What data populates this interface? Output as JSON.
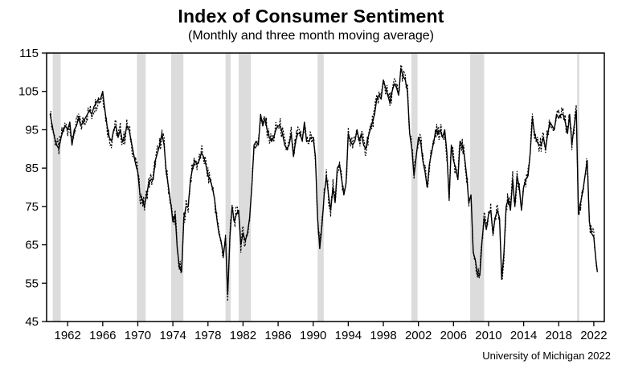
{
  "footer": {
    "source": "University of Michigan 2022"
  },
  "chart_data": {
    "type": "line",
    "title": "Index of Consumer Sentiment",
    "subtitle": "(Monthly and three month moving average)",
    "xlabel": "",
    "ylabel": "",
    "xlim": [
      1959.6,
      2023.2
    ],
    "ylim": [
      45,
      115
    ],
    "yticks": [
      45,
      55,
      65,
      75,
      85,
      95,
      105,
      115
    ],
    "xticks": [
      1962,
      1966,
      1970,
      1974,
      1978,
      1982,
      1986,
      1990,
      1994,
      1998,
      2002,
      2006,
      2010,
      2014,
      2018,
      2022
    ],
    "grid": false,
    "legend": "none",
    "line_color": "#000000",
    "recession_band_color": "#dcdcdc",
    "recession_bands": [
      [
        1960.3,
        1961.2
      ],
      [
        1969.9,
        1970.9
      ],
      [
        1973.8,
        1975.2
      ],
      [
        1980.0,
        1980.6
      ],
      [
        1981.5,
        1982.9
      ],
      [
        1990.5,
        1991.2
      ],
      [
        2001.2,
        2001.9
      ],
      [
        2007.9,
        2009.5
      ],
      [
        2020.1,
        2020.35
      ]
    ],
    "series": [
      {
        "name": "Monthly",
        "style": "dotted"
      },
      {
        "name": "Three month moving average",
        "style": "solid"
      }
    ],
    "points": [
      [
        1960.0,
        99
      ],
      [
        1960.25,
        96
      ],
      [
        1960.5,
        93
      ],
      [
        1960.75,
        91
      ],
      [
        1961.0,
        90
      ],
      [
        1961.25,
        93
      ],
      [
        1961.5,
        95
      ],
      [
        1961.75,
        96
      ],
      [
        1962.0,
        95
      ],
      [
        1962.25,
        97
      ],
      [
        1962.5,
        91
      ],
      [
        1962.75,
        95
      ],
      [
        1963.0,
        96
      ],
      [
        1963.25,
        98
      ],
      [
        1963.5,
        96
      ],
      [
        1963.75,
        97
      ],
      [
        1964.0,
        98
      ],
      [
        1964.25,
        99
      ],
      [
        1964.5,
        100
      ],
      [
        1964.75,
        99
      ],
      [
        1965.0,
        101
      ],
      [
        1965.25,
        102
      ],
      [
        1965.5,
        103
      ],
      [
        1965.75,
        103
      ],
      [
        1966.0,
        105
      ],
      [
        1966.25,
        100
      ],
      [
        1966.5,
        96
      ],
      [
        1966.75,
        93
      ],
      [
        1967.0,
        92
      ],
      [
        1967.25,
        95
      ],
      [
        1967.5,
        96
      ],
      [
        1967.75,
        93
      ],
      [
        1968.0,
        95
      ],
      [
        1968.25,
        92
      ],
      [
        1968.5,
        93
      ],
      [
        1968.75,
        96
      ],
      [
        1969.0,
        95
      ],
      [
        1969.25,
        92
      ],
      [
        1969.5,
        89
      ],
      [
        1969.75,
        86
      ],
      [
        1970.0,
        84
      ],
      [
        1970.25,
        78
      ],
      [
        1970.5,
        77
      ],
      [
        1970.75,
        75
      ],
      [
        1971.0,
        78
      ],
      [
        1971.25,
        81
      ],
      [
        1971.5,
        82
      ],
      [
        1971.75,
        82
      ],
      [
        1972.0,
        87
      ],
      [
        1972.25,
        89
      ],
      [
        1972.5,
        91
      ],
      [
        1972.75,
        94
      ],
      [
        1973.0,
        91
      ],
      [
        1973.25,
        84
      ],
      [
        1973.5,
        80
      ],
      [
        1973.75,
        76
      ],
      [
        1974.0,
        71
      ],
      [
        1974.25,
        73
      ],
      [
        1974.5,
        64
      ],
      [
        1974.75,
        59
      ],
      [
        1975.0,
        58
      ],
      [
        1975.25,
        72
      ],
      [
        1975.5,
        75
      ],
      [
        1975.75,
        75
      ],
      [
        1976.0,
        82
      ],
      [
        1976.25,
        85
      ],
      [
        1976.5,
        87
      ],
      [
        1976.75,
        86
      ],
      [
        1977.0,
        87
      ],
      [
        1977.25,
        89
      ],
      [
        1977.5,
        88
      ],
      [
        1977.75,
        86
      ],
      [
        1978.0,
        83
      ],
      [
        1978.25,
        82
      ],
      [
        1978.5,
        80
      ],
      [
        1978.75,
        77
      ],
      [
        1979.0,
        72
      ],
      [
        1979.25,
        68
      ],
      [
        1979.5,
        66
      ],
      [
        1979.75,
        62
      ],
      [
        1980.0,
        67
      ],
      [
        1980.25,
        52
      ],
      [
        1980.5,
        67
      ],
      [
        1980.75,
        75
      ],
      [
        1981.0,
        71
      ],
      [
        1981.25,
        73
      ],
      [
        1981.5,
        74
      ],
      [
        1981.75,
        65
      ],
      [
        1982.0,
        68
      ],
      [
        1982.25,
        66
      ],
      [
        1982.5,
        68
      ],
      [
        1982.75,
        72
      ],
      [
        1983.0,
        80
      ],
      [
        1983.25,
        91
      ],
      [
        1983.5,
        92
      ],
      [
        1983.75,
        91
      ],
      [
        1984.0,
        99
      ],
      [
        1984.25,
        96
      ],
      [
        1984.5,
        98
      ],
      [
        1984.75,
        95
      ],
      [
        1985.0,
        93
      ],
      [
        1985.25,
        92
      ],
      [
        1985.5,
        93
      ],
      [
        1985.75,
        95
      ],
      [
        1986.0,
        96
      ],
      [
        1986.25,
        96
      ],
      [
        1986.5,
        94
      ],
      [
        1986.75,
        91
      ],
      [
        1987.0,
        90
      ],
      [
        1987.25,
        91
      ],
      [
        1987.5,
        94
      ],
      [
        1987.75,
        88
      ],
      [
        1988.0,
        92
      ],
      [
        1988.25,
        94
      ],
      [
        1988.5,
        94
      ],
      [
        1988.75,
        92
      ],
      [
        1989.0,
        97
      ],
      [
        1989.25,
        92
      ],
      [
        1989.5,
        92
      ],
      [
        1989.75,
        93
      ],
      [
        1990.0,
        93
      ],
      [
        1990.25,
        88
      ],
      [
        1990.5,
        72
      ],
      [
        1990.75,
        64
      ],
      [
        1991.0,
        70
      ],
      [
        1991.25,
        78
      ],
      [
        1991.5,
        83
      ],
      [
        1991.75,
        78
      ],
      [
        1992.0,
        74
      ],
      [
        1992.25,
        80
      ],
      [
        1992.5,
        76
      ],
      [
        1992.75,
        85
      ],
      [
        1993.0,
        86
      ],
      [
        1993.25,
        82
      ],
      [
        1993.5,
        78
      ],
      [
        1993.75,
        81
      ],
      [
        1994.0,
        94
      ],
      [
        1994.25,
        92
      ],
      [
        1994.5,
        91
      ],
      [
        1994.75,
        92
      ],
      [
        1995.0,
        95
      ],
      [
        1995.25,
        92
      ],
      [
        1995.5,
        94
      ],
      [
        1995.75,
        91
      ],
      [
        1996.0,
        90
      ],
      [
        1996.25,
        93
      ],
      [
        1996.5,
        95
      ],
      [
        1996.75,
        97
      ],
      [
        1997.0,
        99
      ],
      [
        1997.25,
        103
      ],
      [
        1997.5,
        104
      ],
      [
        1997.75,
        103
      ],
      [
        1998.0,
        108
      ],
      [
        1998.25,
        106
      ],
      [
        1998.5,
        104
      ],
      [
        1998.75,
        102
      ],
      [
        1999.0,
        105
      ],
      [
        1999.25,
        107
      ],
      [
        1999.5,
        106
      ],
      [
        1999.75,
        104
      ],
      [
        2000.0,
        111
      ],
      [
        2000.25,
        109
      ],
      [
        2000.5,
        108
      ],
      [
        2000.75,
        105
      ],
      [
        2001.0,
        94
      ],
      [
        2001.25,
        90
      ],
      [
        2001.5,
        83
      ],
      [
        2001.75,
        88
      ],
      [
        2002.0,
        93
      ],
      [
        2002.25,
        92
      ],
      [
        2002.5,
        87
      ],
      [
        2002.75,
        84
      ],
      [
        2003.0,
        80
      ],
      [
        2003.25,
        86
      ],
      [
        2003.5,
        89
      ],
      [
        2003.75,
        92
      ],
      [
        2004.0,
        95
      ],
      [
        2004.25,
        94
      ],
      [
        2004.5,
        95
      ],
      [
        2004.75,
        93
      ],
      [
        2005.0,
        95
      ],
      [
        2005.25,
        89
      ],
      [
        2005.5,
        77
      ],
      [
        2005.75,
        91
      ],
      [
        2006.0,
        87
      ],
      [
        2006.25,
        85
      ],
      [
        2006.5,
        82
      ],
      [
        2006.75,
        92
      ],
      [
        2007.0,
        91
      ],
      [
        2007.25,
        88
      ],
      [
        2007.5,
        83
      ],
      [
        2007.75,
        76
      ],
      [
        2008.0,
        78
      ],
      [
        2008.25,
        63
      ],
      [
        2008.5,
        61
      ],
      [
        2008.75,
        57
      ],
      [
        2009.0,
        57
      ],
      [
        2009.25,
        66
      ],
      [
        2009.5,
        72
      ],
      [
        2009.75,
        69
      ],
      [
        2010.0,
        73
      ],
      [
        2010.25,
        74
      ],
      [
        2010.5,
        68
      ],
      [
        2010.75,
        72
      ],
      [
        2011.0,
        74
      ],
      [
        2011.25,
        72
      ],
      [
        2011.5,
        56
      ],
      [
        2011.75,
        63
      ],
      [
        2012.0,
        75
      ],
      [
        2012.25,
        77
      ],
      [
        2012.5,
        74
      ],
      [
        2012.75,
        82
      ],
      [
        2013.0,
        75
      ],
      [
        2013.25,
        83
      ],
      [
        2013.5,
        80
      ],
      [
        2013.75,
        74
      ],
      [
        2014.0,
        80
      ],
      [
        2014.25,
        82
      ],
      [
        2014.5,
        83
      ],
      [
        2014.75,
        89
      ],
      [
        2015.0,
        98
      ],
      [
        2015.25,
        94
      ],
      [
        2015.5,
        92
      ],
      [
        2015.75,
        91
      ],
      [
        2016.0,
        91
      ],
      [
        2016.25,
        93
      ],
      [
        2016.5,
        90
      ],
      [
        2016.75,
        94
      ],
      [
        2017.0,
        97
      ],
      [
        2017.25,
        96
      ],
      [
        2017.5,
        95
      ],
      [
        2017.75,
        99
      ],
      [
        2018.0,
        98
      ],
      [
        2018.25,
        99
      ],
      [
        2018.5,
        99
      ],
      [
        2018.75,
        97
      ],
      [
        2019.0,
        94
      ],
      [
        2019.25,
        99
      ],
      [
        2019.5,
        91
      ],
      [
        2019.75,
        96
      ],
      [
        2020.0,
        100
      ],
      [
        2020.25,
        73
      ],
      [
        2020.5,
        76
      ],
      [
        2020.75,
        79
      ],
      [
        2021.0,
        83
      ],
      [
        2021.25,
        87
      ],
      [
        2021.5,
        71
      ],
      [
        2021.75,
        68
      ],
      [
        2022.0,
        67
      ],
      [
        2022.25,
        61
      ],
      [
        2022.4,
        58
      ]
    ]
  }
}
